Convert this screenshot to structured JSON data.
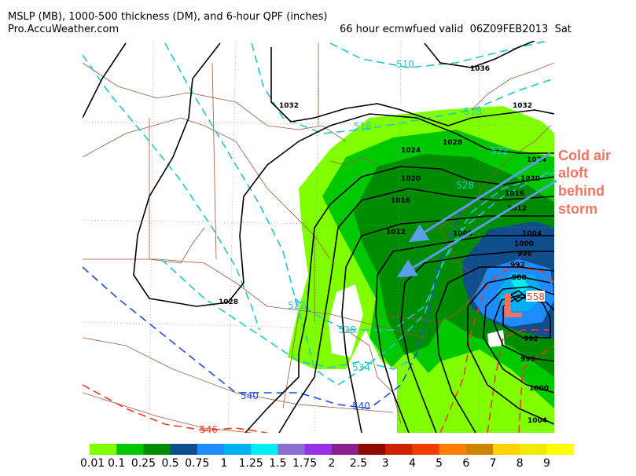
{
  "header": {
    "title": "MSLP (MB), 1000-500 thickness (DM), and 6-hour QPF (inches)",
    "source": "Pro.AccuWeather.com",
    "valid": "66 hour ecmwfued valid  06Z09FEB2013  Sat"
  },
  "colors": {
    "isobar": "#000000",
    "border": "#9c5a3c",
    "thickness_cold": "#1fc8c8",
    "thickness_540": "#1f4fe0",
    "thickness_warm": "#f03a20",
    "annotation": "#f2735f",
    "arrow": "#5aa0e8"
  },
  "isobar_labels": [
    "1036",
    "1032",
    "1032",
    "1028",
    "1024",
    "1024",
    "1020",
    "1020",
    "1016",
    "1016",
    "1012",
    "1012",
    "1008",
    "1004",
    "1000",
    "996",
    "992",
    "988",
    "992",
    "996",
    "1000",
    "1004",
    "1028"
  ],
  "thickness_labels": [
    "510",
    "516",
    "518",
    "522",
    "522",
    "528",
    "528",
    "534",
    "540",
    "540",
    "546",
    "558"
  ],
  "low_symbol": "L",
  "annotation": {
    "lines": [
      "Cold air",
      "aloft",
      "behind",
      "storm"
    ]
  },
  "legend": {
    "labels": [
      "0.01",
      "0.1",
      "0.25",
      "0.5",
      "0.75",
      "1",
      "1.25",
      "1.5",
      "1.75",
      "2",
      "2.5",
      "3",
      "4",
      "5",
      "6",
      "7",
      "8",
      "9"
    ],
    "colors": [
      "#80ff00",
      "#00c800",
      "#008c00",
      "#104d8c",
      "#1e8cff",
      "#00b0f0",
      "#00eeee",
      "#8c6ed2",
      "#9632e6",
      "#8c1e8c",
      "#8c0a00",
      "#cd2300",
      "#f03c00",
      "#ff8000",
      "#cd8200",
      "#ffd200",
      "#f0eb00",
      "#ffff00"
    ]
  }
}
